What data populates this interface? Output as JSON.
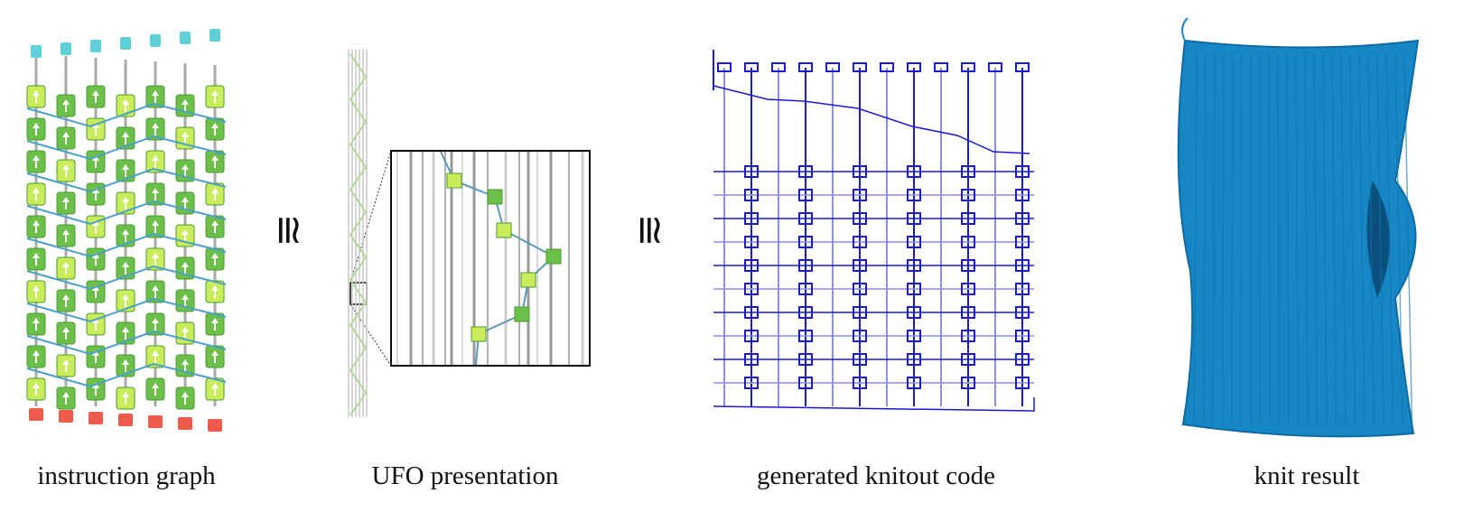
{
  "panels": [
    {
      "caption": "instruction graph"
    },
    {
      "caption": "UFO presentation"
    },
    {
      "caption": "generated knitout code"
    },
    {
      "caption": "knit result"
    }
  ],
  "relations": [
    "≅",
    "≅"
  ]
}
